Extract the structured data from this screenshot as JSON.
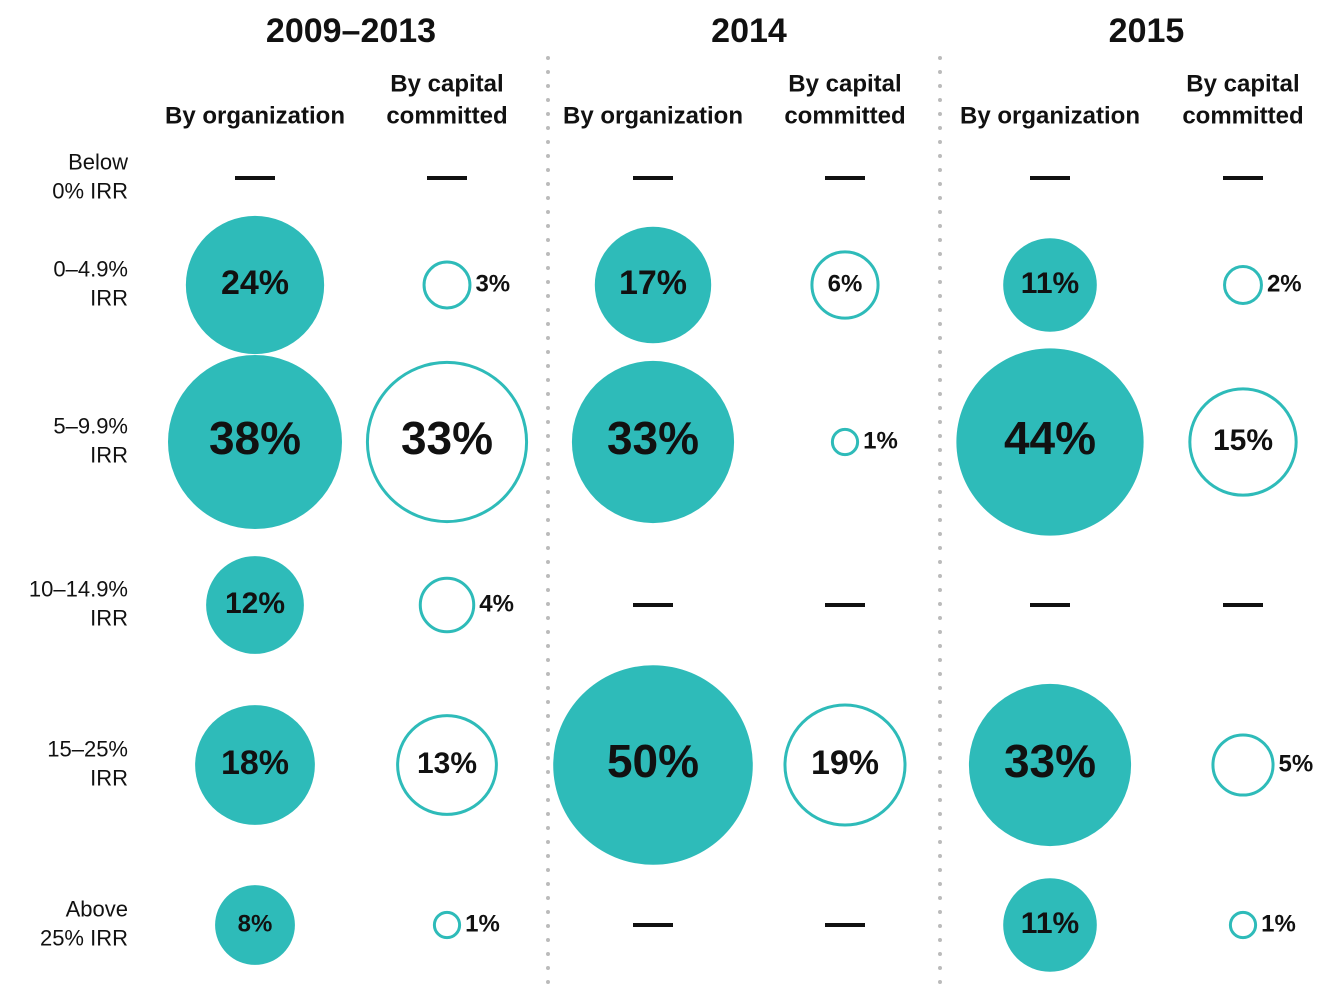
{
  "chart_data": {
    "type": "bubble_matrix",
    "rows": [
      [
        "Below",
        "0% IRR"
      ],
      [
        "0–4.9%",
        "IRR"
      ],
      [
        "5–9.9%",
        "IRR"
      ],
      [
        "10–14.9%",
        "IRR"
      ],
      [
        "15–25%",
        "IRR"
      ],
      [
        "Above",
        "25% IRR"
      ]
    ],
    "color": "#2ebbb9",
    "groups": [
      {
        "title": "2009–2013",
        "columns": [
          {
            "label": [
              "By organization"
            ],
            "filled": true,
            "values": [
              null,
              24,
              38,
              12,
              18,
              8
            ],
            "value_labels": [
              "—",
              "24%",
              "38%",
              "12%",
              "18%",
              "8%"
            ]
          },
          {
            "label": [
              "By capital",
              "committed"
            ],
            "filled": false,
            "values": [
              null,
              3,
              33,
              4,
              13,
              1
            ],
            "value_labels": [
              "—",
              "3%",
              "33%",
              "4%",
              "13%",
              "1%"
            ]
          }
        ]
      },
      {
        "title": "2014",
        "columns": [
          {
            "label": [
              "By organization"
            ],
            "filled": true,
            "values": [
              null,
              17,
              33,
              null,
              50,
              null
            ],
            "value_labels": [
              "—",
              "17%",
              "33%",
              "—",
              "50%",
              "—"
            ]
          },
          {
            "label": [
              "By capital",
              "committed"
            ],
            "filled": false,
            "values": [
              null,
              6,
              1,
              null,
              19,
              null
            ],
            "value_labels": [
              "—",
              "6%",
              "1%",
              "—",
              "19%",
              "—"
            ]
          }
        ]
      },
      {
        "title": "2015",
        "columns": [
          {
            "label": [
              "By organization"
            ],
            "filled": true,
            "values": [
              null,
              11,
              44,
              null,
              33,
              11
            ],
            "value_labels": [
              "—",
              "11%",
              "44%",
              "—",
              "33%",
              "11%"
            ]
          },
          {
            "label": [
              "By capital",
              "committed"
            ],
            "filled": false,
            "values": [
              null,
              2,
              15,
              null,
              5,
              1
            ],
            "value_labels": [
              "—",
              "2%",
              "15%",
              "—",
              "5%",
              "1%"
            ]
          }
        ]
      }
    ]
  }
}
